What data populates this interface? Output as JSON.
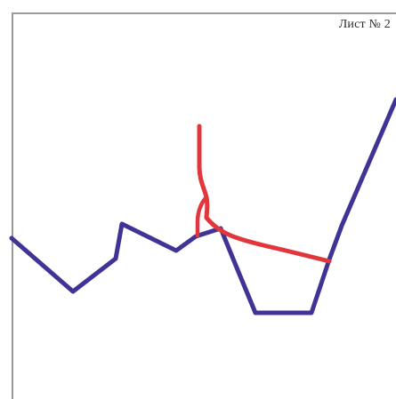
{
  "sheet": {
    "label": "Лист № 2"
  },
  "colors": {
    "background": "#ffffff",
    "border": "#9a9a9a",
    "blue_line": "#3f3496",
    "red_line": "#e0373c"
  },
  "lines": [
    {
      "name": "blue-profile-line",
      "color": "#3f3496"
    },
    {
      "name": "red-curve-line",
      "color": "#e0373c"
    }
  ]
}
